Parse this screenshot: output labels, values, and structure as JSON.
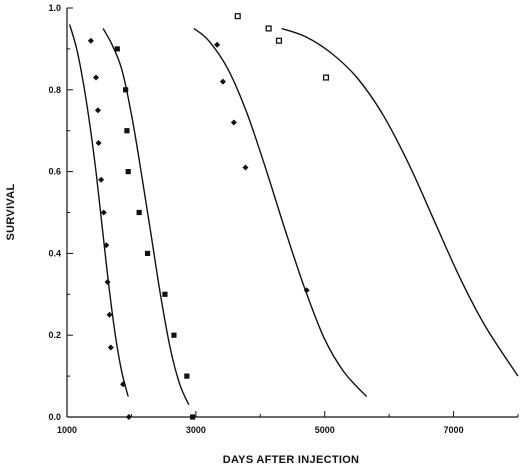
{
  "chart_data": {
    "type": "scatter",
    "xlabel": "DAYS AFTER INJECTION",
    "ylabel": "SURVIVAL",
    "xlim": [
      1000,
      8000
    ],
    "ylim": [
      0,
      1
    ],
    "x_ticks": [
      1000,
      3000,
      5000,
      7000
    ],
    "x_tick_labels": [
      "1000",
      "3000",
      "5000",
      "7000"
    ],
    "y_ticks": [
      0,
      0.2,
      0.4,
      0.6,
      0.8,
      1.0
    ],
    "y_tick_labels": [
      "0.0",
      "0.2",
      "0.4",
      "0.6",
      "0.8",
      "1.0"
    ],
    "grid": false,
    "series": [
      {
        "marker": "diamond",
        "points": [
          [
            1370,
            0.92
          ],
          [
            1450,
            0.83
          ],
          [
            1480,
            0.75
          ],
          [
            1490,
            0.67
          ],
          [
            1530,
            0.58
          ],
          [
            1570,
            0.5
          ],
          [
            1610,
            0.42
          ],
          [
            1630,
            0.33
          ],
          [
            1660,
            0.25
          ],
          [
            1680,
            0.17
          ],
          [
            1870,
            0.08
          ],
          [
            1960,
            0.0
          ]
        ],
        "curve": [
          [
            1040,
            0.96
          ],
          [
            1150,
            0.9
          ],
          [
            1250,
            0.82
          ],
          [
            1350,
            0.72
          ],
          [
            1450,
            0.6
          ],
          [
            1550,
            0.46
          ],
          [
            1650,
            0.32
          ],
          [
            1750,
            0.2
          ],
          [
            1850,
            0.11
          ],
          [
            1950,
            0.05
          ]
        ]
      },
      {
        "marker": "square",
        "points": [
          [
            1780,
            0.9
          ],
          [
            1910,
            0.8
          ],
          [
            1930,
            0.7
          ],
          [
            1950,
            0.6
          ],
          [
            2120,
            0.5
          ],
          [
            2250,
            0.4
          ],
          [
            2520,
            0.3
          ],
          [
            2660,
            0.2
          ],
          [
            2860,
            0.1
          ],
          [
            2950,
            0.0
          ]
        ],
        "curve": [
          [
            1560,
            0.95
          ],
          [
            1700,
            0.91
          ],
          [
            1850,
            0.85
          ],
          [
            2000,
            0.74
          ],
          [
            2150,
            0.6
          ],
          [
            2300,
            0.45
          ],
          [
            2450,
            0.3
          ],
          [
            2600,
            0.17
          ],
          [
            2750,
            0.08
          ],
          [
            2890,
            0.03
          ]
        ]
      },
      {
        "marker": "diamond",
        "points": [
          [
            3330,
            0.91
          ],
          [
            3420,
            0.82
          ],
          [
            3590,
            0.72
          ],
          [
            3770,
            0.61
          ],
          [
            4720,
            0.31
          ]
        ],
        "curve": [
          [
            2970,
            0.95
          ],
          [
            3200,
            0.92
          ],
          [
            3500,
            0.85
          ],
          [
            3800,
            0.74
          ],
          [
            4100,
            0.6
          ],
          [
            4400,
            0.45
          ],
          [
            4700,
            0.31
          ],
          [
            5000,
            0.19
          ],
          [
            5300,
            0.11
          ],
          [
            5650,
            0.05
          ]
        ]
      },
      {
        "marker": "square-hollow",
        "points": [
          [
            3650,
            0.98
          ],
          [
            4130,
            0.95
          ],
          [
            4290,
            0.92
          ],
          [
            5020,
            0.83
          ]
        ],
        "curve": [
          [
            4330,
            0.95
          ],
          [
            4700,
            0.93
          ],
          [
            5100,
            0.89
          ],
          [
            5500,
            0.83
          ],
          [
            5900,
            0.74
          ],
          [
            6300,
            0.62
          ],
          [
            6700,
            0.48
          ],
          [
            7100,
            0.34
          ],
          [
            7500,
            0.22
          ],
          [
            8000,
            0.1
          ]
        ]
      }
    ]
  }
}
